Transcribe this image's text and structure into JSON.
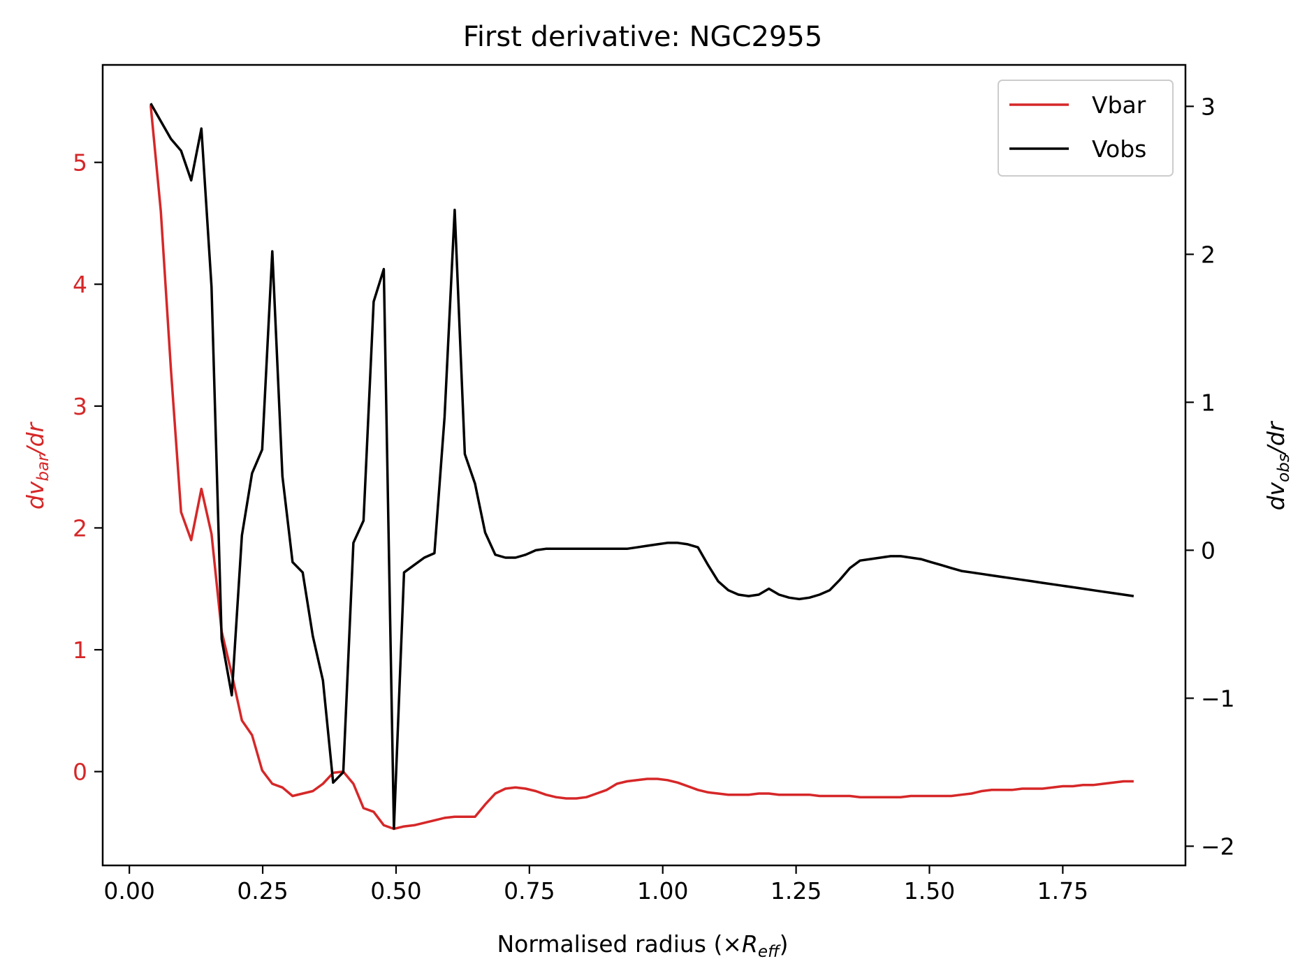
{
  "chart_data": {
    "type": "line",
    "title": "First derivative: NGC2955",
    "xlabel": {
      "text": "Normalised radius (×",
      "math_base": "R",
      "math_sub": "eff",
      "suffix": ")"
    },
    "ylabel_left": {
      "base": "dv",
      "sub": "bar",
      "suffix": "/dr"
    },
    "ylabel_right": {
      "base": "dv",
      "sub": "obs",
      "suffix": "/dr"
    },
    "xlim": [
      -0.05,
      1.98
    ],
    "ylim_left": [
      -0.77,
      5.8
    ],
    "ylim_right": [
      -2.13,
      3.28
    ],
    "xticks": [
      0.0,
      0.25,
      0.5,
      0.75,
      1.0,
      1.25,
      1.5,
      1.75
    ],
    "xtick_labels": [
      "0.00",
      "0.25",
      "0.50",
      "0.75",
      "1.00",
      "1.25",
      "1.50",
      "1.75"
    ],
    "yticks_left": [
      0,
      1,
      2,
      3,
      4,
      5
    ],
    "ytick_labels_left": [
      "0",
      "1",
      "2",
      "3",
      "4",
      "5"
    ],
    "yticks_right": [
      -2,
      -1,
      0,
      1,
      2,
      3
    ],
    "ytick_labels_right": [
      "−2",
      "−1",
      "0",
      "1",
      "2",
      "3"
    ],
    "grid": false,
    "legend": "top-right",
    "colors": {
      "left_axis": "#d62728",
      "vbar": "#d62728",
      "vobs": "#000000"
    },
    "series": [
      {
        "name": "Vbar",
        "axis": "left",
        "x": [
          0.04,
          0.059,
          0.078,
          0.097,
          0.116,
          0.135,
          0.154,
          0.173,
          0.192,
          0.211,
          0.23,
          0.249,
          0.268,
          0.287,
          0.306,
          0.325,
          0.344,
          0.363,
          0.382,
          0.401,
          0.42,
          0.439,
          0.458,
          0.477,
          0.496,
          0.515,
          0.534,
          0.553,
          0.572,
          0.591,
          0.61,
          0.629,
          0.648,
          0.667,
          0.686,
          0.705,
          0.724,
          0.743,
          0.762,
          0.781,
          0.8,
          0.819,
          0.838,
          0.857,
          0.876,
          0.895,
          0.914,
          0.933,
          0.952,
          0.971,
          0.99,
          1.009,
          1.028,
          1.047,
          1.066,
          1.085,
          1.104,
          1.123,
          1.142,
          1.161,
          1.18,
          1.199,
          1.218,
          1.237,
          1.256,
          1.275,
          1.294,
          1.313,
          1.332,
          1.351,
          1.37,
          1.389,
          1.408,
          1.427,
          1.446,
          1.465,
          1.484,
          1.503,
          1.522,
          1.541,
          1.56,
          1.579,
          1.598,
          1.617,
          1.636,
          1.655,
          1.674,
          1.693,
          1.712,
          1.731,
          1.75,
          1.769,
          1.788,
          1.807,
          1.826,
          1.845,
          1.864,
          1.883
        ],
        "y": [
          5.47,
          4.6,
          3.3,
          2.13,
          1.9,
          2.32,
          1.95,
          1.15,
          0.8,
          0.42,
          0.3,
          0.01,
          -0.1,
          -0.13,
          -0.2,
          -0.18,
          -0.16,
          -0.1,
          -0.01,
          0.0,
          -0.1,
          -0.3,
          -0.33,
          -0.44,
          -0.47,
          -0.45,
          -0.44,
          -0.42,
          -0.4,
          -0.38,
          -0.37,
          -0.37,
          -0.37,
          -0.27,
          -0.18,
          -0.14,
          -0.13,
          -0.14,
          -0.16,
          -0.19,
          -0.21,
          -0.22,
          -0.22,
          -0.21,
          -0.18,
          -0.15,
          -0.1,
          -0.08,
          -0.07,
          -0.06,
          -0.06,
          -0.07,
          -0.09,
          -0.12,
          -0.15,
          -0.17,
          -0.18,
          -0.19,
          -0.19,
          -0.19,
          -0.18,
          -0.18,
          -0.19,
          -0.19,
          -0.19,
          -0.19,
          -0.2,
          -0.2,
          -0.2,
          -0.2,
          -0.21,
          -0.21,
          -0.21,
          -0.21,
          -0.21,
          -0.2,
          -0.2,
          -0.2,
          -0.2,
          -0.2,
          -0.19,
          -0.18,
          -0.16,
          -0.15,
          -0.15,
          -0.15,
          -0.14,
          -0.14,
          -0.14,
          -0.13,
          -0.12,
          -0.12,
          -0.11,
          -0.11,
          -0.1,
          -0.09,
          -0.08,
          -0.08
        ]
      },
      {
        "name": "Vobs",
        "axis": "right",
        "x": [
          0.04,
          0.059,
          0.078,
          0.097,
          0.116,
          0.135,
          0.154,
          0.173,
          0.192,
          0.211,
          0.23,
          0.249,
          0.268,
          0.287,
          0.306,
          0.325,
          0.344,
          0.363,
          0.382,
          0.401,
          0.42,
          0.439,
          0.458,
          0.477,
          0.496,
          0.515,
          0.534,
          0.553,
          0.572,
          0.591,
          0.61,
          0.629,
          0.648,
          0.667,
          0.686,
          0.705,
          0.724,
          0.743,
          0.762,
          0.781,
          0.8,
          0.819,
          0.838,
          0.857,
          0.876,
          0.895,
          0.914,
          0.933,
          0.952,
          0.971,
          0.99,
          1.009,
          1.028,
          1.047,
          1.066,
          1.085,
          1.104,
          1.123,
          1.142,
          1.161,
          1.18,
          1.199,
          1.218,
          1.237,
          1.256,
          1.275,
          1.294,
          1.313,
          1.332,
          1.351,
          1.37,
          1.389,
          1.408,
          1.427,
          1.446,
          1.465,
          1.484,
          1.503,
          1.522,
          1.541,
          1.56,
          1.579,
          1.598,
          1.617,
          1.636,
          1.655,
          1.674,
          1.693,
          1.712,
          1.731,
          1.75,
          1.769,
          1.788,
          1.807,
          1.826,
          1.845,
          1.864,
          1.883
        ],
        "y": [
          3.02,
          2.9,
          2.78,
          2.7,
          2.5,
          2.85,
          1.78,
          -0.6,
          -0.98,
          0.1,
          0.52,
          0.68,
          2.02,
          0.5,
          -0.08,
          -0.15,
          -0.58,
          -0.88,
          -1.57,
          -1.5,
          0.05,
          0.2,
          1.68,
          1.9,
          -1.88,
          -0.15,
          -0.1,
          -0.05,
          -0.02,
          0.9,
          2.3,
          0.65,
          0.45,
          0.12,
          -0.03,
          -0.05,
          -0.05,
          -0.03,
          0.0,
          0.01,
          0.01,
          0.01,
          0.01,
          0.01,
          0.01,
          0.01,
          0.01,
          0.01,
          0.02,
          0.03,
          0.04,
          0.05,
          0.05,
          0.04,
          0.02,
          -0.1,
          -0.21,
          -0.27,
          -0.3,
          -0.31,
          -0.3,
          -0.26,
          -0.3,
          -0.32,
          -0.33,
          -0.32,
          -0.3,
          -0.27,
          -0.2,
          -0.12,
          -0.07,
          -0.06,
          -0.05,
          -0.04,
          -0.04,
          -0.05,
          -0.06,
          -0.08,
          -0.1,
          -0.12,
          -0.14,
          -0.15,
          -0.16,
          -0.17,
          -0.18,
          -0.19,
          -0.2,
          -0.21,
          -0.22,
          -0.23,
          -0.24,
          -0.25,
          -0.26,
          -0.27,
          -0.28,
          -0.29,
          -0.3,
          -0.31
        ]
      }
    ]
  }
}
